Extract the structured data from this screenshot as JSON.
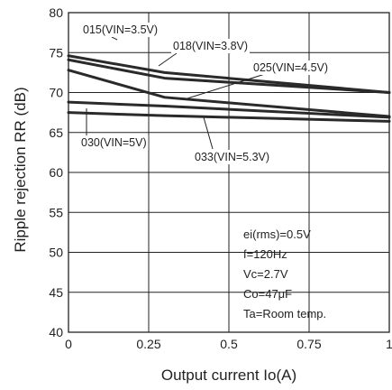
{
  "chart_data": {
    "type": "line",
    "title": "",
    "xlabel": "Output current Io(A)",
    "ylabel": "Ripple rejection RR (dB)",
    "xlim": [
      0,
      1
    ],
    "ylim": [
      40,
      80
    ],
    "x_ticks": [
      "0",
      "0.25",
      "0.5",
      "0.75",
      "1"
    ],
    "y_ticks": [
      "40",
      "45",
      "50",
      "55",
      "60",
      "65",
      "70",
      "75",
      "80"
    ],
    "grid": true,
    "line_color": "#2a2a2a",
    "series": [
      {
        "name": "015(VIN=3.5V)",
        "x": [
          0,
          0.3,
          1
        ],
        "y": [
          74.6,
          72.5,
          70.0
        ]
      },
      {
        "name": "018(VIN=3.8V)",
        "x": [
          0,
          0.3,
          1
        ],
        "y": [
          74.1,
          71.8,
          70.0
        ]
      },
      {
        "name": "025(VIN=4.5V)",
        "x": [
          0,
          0.3,
          1
        ],
        "y": [
          72.8,
          69.4,
          67.0
        ]
      },
      {
        "name": "030(VIN=5V)",
        "x": [
          0,
          0.3,
          1
        ],
        "y": [
          68.8,
          68.3,
          66.9
        ]
      },
      {
        "name": "033(VIN=5.3V)",
        "x": [
          0,
          0.3,
          1
        ],
        "y": [
          67.5,
          67.1,
          66.4
        ]
      }
    ],
    "annotations": [
      {
        "text": "015(VIN=3.5V)",
        "series": 0
      },
      {
        "text": "018(VIN=3.8V)",
        "series": 1
      },
      {
        "text": "025(VIN=4.5V)",
        "series": 2
      },
      {
        "text": "030(VIN=5V)",
        "series": 3
      },
      {
        "text": "033(VIN=5.3V)",
        "series": 4
      }
    ],
    "conditions": [
      "ei(rms)=0.5V",
      "f=120Hz",
      "Vc=2.7V",
      "Co=47μF",
      "Ta=Room temp."
    ]
  }
}
